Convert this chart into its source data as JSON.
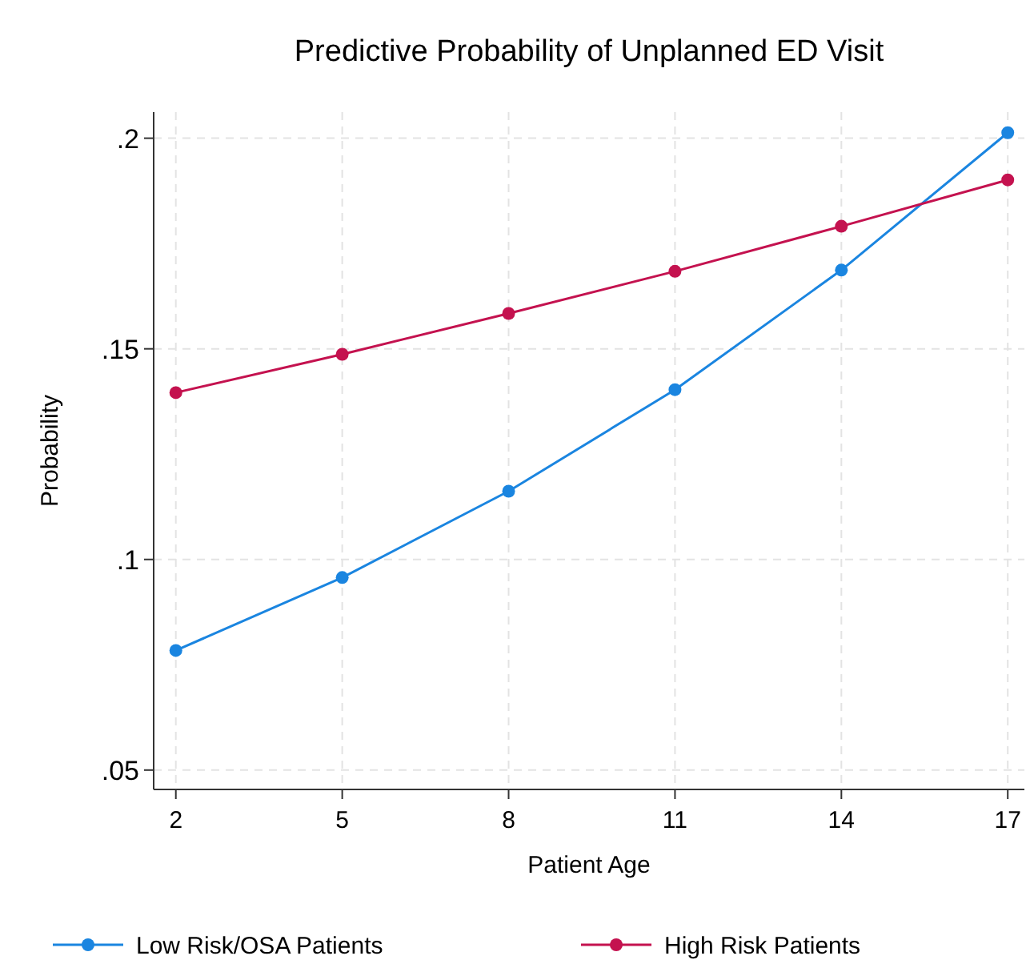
{
  "chart_data": {
    "type": "line",
    "title": "Predictive Probability of Unplanned ED Visit",
    "xlabel": "Patient Age",
    "ylabel": "Probability",
    "x": [
      2,
      5,
      8,
      11,
      14,
      17
    ],
    "xlim": [
      1.6,
      17.3
    ],
    "xticks": [
      2,
      5,
      8,
      11,
      14,
      17
    ],
    "ylim": [
      0.0454,
      0.2062
    ],
    "yticks": [
      {
        "value": 0.05,
        "label": ".05"
      },
      {
        "value": 0.1,
        "label": ".1"
      },
      {
        "value": 0.15,
        "label": ".15"
      },
      {
        "value": 0.2,
        "label": ".2"
      }
    ],
    "grid": true,
    "legend": "bottom",
    "marker": "circle",
    "line_style": "solid",
    "series": [
      {
        "name": "Low Risk/OSA Patients",
        "color": "#1a85e0",
        "values": [
          0.0784,
          0.0957,
          0.1162,
          0.1403,
          0.1687,
          0.2013
        ]
      },
      {
        "name": "High Risk Patients",
        "color": "#c4124f",
        "values": [
          0.1396,
          0.1487,
          0.1584,
          0.1684,
          0.1791,
          0.1901
        ]
      }
    ]
  }
}
